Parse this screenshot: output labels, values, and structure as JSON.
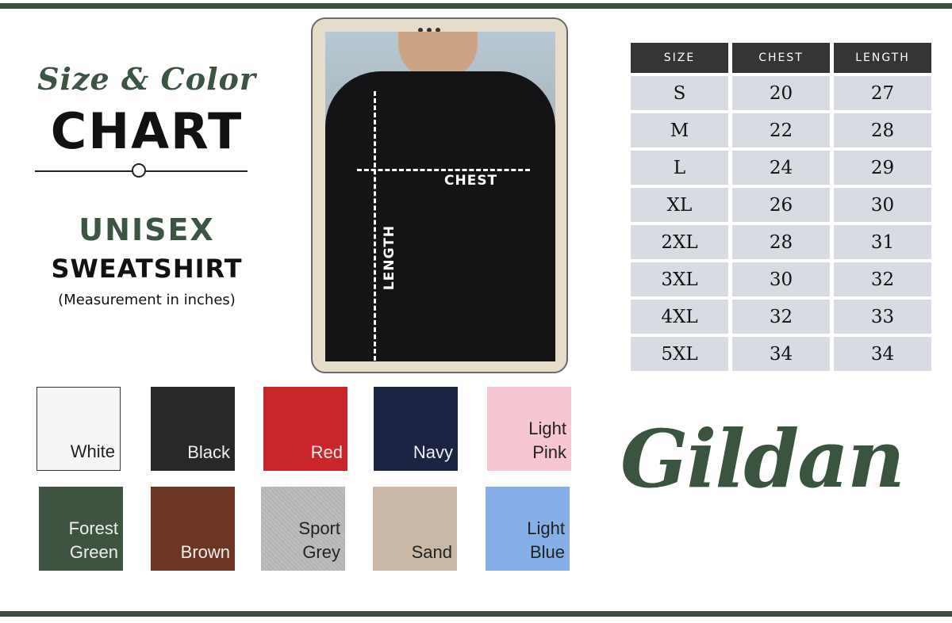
{
  "title": {
    "line1": "Size & Color",
    "line2": "CHART",
    "product1": "UNISEX",
    "product2": "SWEATSHIRT",
    "note": "(Measurement in inches)"
  },
  "photo": {
    "chest_label": "CHEST",
    "length_label": "LENGTH"
  },
  "size_table": {
    "headers": [
      "SIZE",
      "CHEST",
      "LENGTH"
    ],
    "rows": [
      [
        "S",
        "20",
        "27"
      ],
      [
        "M",
        "22",
        "28"
      ],
      [
        "L",
        "24",
        "29"
      ],
      [
        "XL",
        "26",
        "30"
      ],
      [
        "2XL",
        "28",
        "31"
      ],
      [
        "3XL",
        "30",
        "32"
      ],
      [
        "4XL",
        "32",
        "33"
      ],
      [
        "5XL",
        "34",
        "34"
      ]
    ]
  },
  "colors": [
    {
      "name": "White",
      "hex": "#f5f5f7",
      "text": "#222"
    },
    {
      "name": "Black",
      "hex": "#2a272a",
      "text": "#eee"
    },
    {
      "name": "Red",
      "hex": "#c8262b",
      "text": "#eee"
    },
    {
      "name": "Navy",
      "hex": "#1c2444",
      "text": "#eee"
    },
    {
      "name": "Light Pink",
      "hex": "#f7c6d3",
      "text": "#222"
    },
    {
      "name": "Forest Green",
      "hex": "#3f5440",
      "text": "#eee"
    },
    {
      "name": "Brown",
      "hex": "#6e3522",
      "text": "#eee"
    },
    {
      "name": "Sport Grey",
      "hex": "#bdbdbd",
      "text": "#222"
    },
    {
      "name": "Sand",
      "hex": "#c9b8a5",
      "text": "#222"
    },
    {
      "name": "Light Blue",
      "hex": "#85afe6",
      "text": "#222"
    }
  ],
  "brand": "Gildan",
  "accent": "#3c5444"
}
